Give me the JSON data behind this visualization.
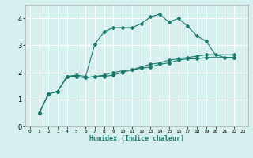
{
  "xlabel": "Humidex (Indice chaleur)",
  "ylabel": "",
  "bg_color": "#d6f0f0",
  "line_color": "#1a7a6e",
  "grid_color": "#ffffff",
  "xlim": [
    -0.5,
    23.5
  ],
  "ylim": [
    0,
    4.5
  ],
  "xticks": [
    0,
    1,
    2,
    3,
    4,
    5,
    6,
    7,
    8,
    9,
    10,
    11,
    12,
    13,
    14,
    15,
    16,
    17,
    18,
    19,
    20,
    21,
    22,
    23
  ],
  "yticks": [
    0,
    1,
    2,
    3,
    4
  ],
  "series": [
    [
      0.5,
      1.2,
      1.3,
      1.85,
      1.9,
      1.85,
      3.05,
      3.5,
      3.65,
      3.65,
      3.65,
      3.8,
      4.05,
      4.15,
      3.85,
      4.0,
      3.7,
      3.35,
      3.15,
      2.65,
      2.55,
      2.55
    ],
    [
      0.5,
      1.2,
      1.3,
      1.85,
      1.85,
      1.8,
      1.85,
      1.85,
      1.9,
      2.0,
      2.1,
      2.15,
      2.2,
      2.3,
      2.35,
      2.45,
      2.5,
      2.5,
      2.55,
      2.55
    ],
    [
      0.5,
      1.2,
      1.3,
      1.85,
      1.85,
      1.8,
      1.85,
      1.9,
      2.0,
      2.05,
      2.1,
      2.2,
      2.3,
      2.35,
      2.45,
      2.5,
      2.55,
      2.6,
      2.65,
      2.65
    ]
  ],
  "series_x": [
    [
      1,
      2,
      3,
      4,
      5,
      6,
      7,
      8,
      9,
      10,
      11,
      12,
      13,
      14,
      15,
      16,
      17,
      18,
      19,
      20,
      21,
      22
    ],
    [
      1,
      2,
      3,
      4,
      5,
      6,
      7,
      8,
      9,
      10,
      11,
      12,
      13,
      14,
      15,
      16,
      17,
      18,
      19,
      22
    ],
    [
      1,
      2,
      3,
      4,
      5,
      6,
      7,
      8,
      9,
      10,
      11,
      12,
      13,
      14,
      15,
      16,
      17,
      18,
      19,
      22
    ]
  ]
}
